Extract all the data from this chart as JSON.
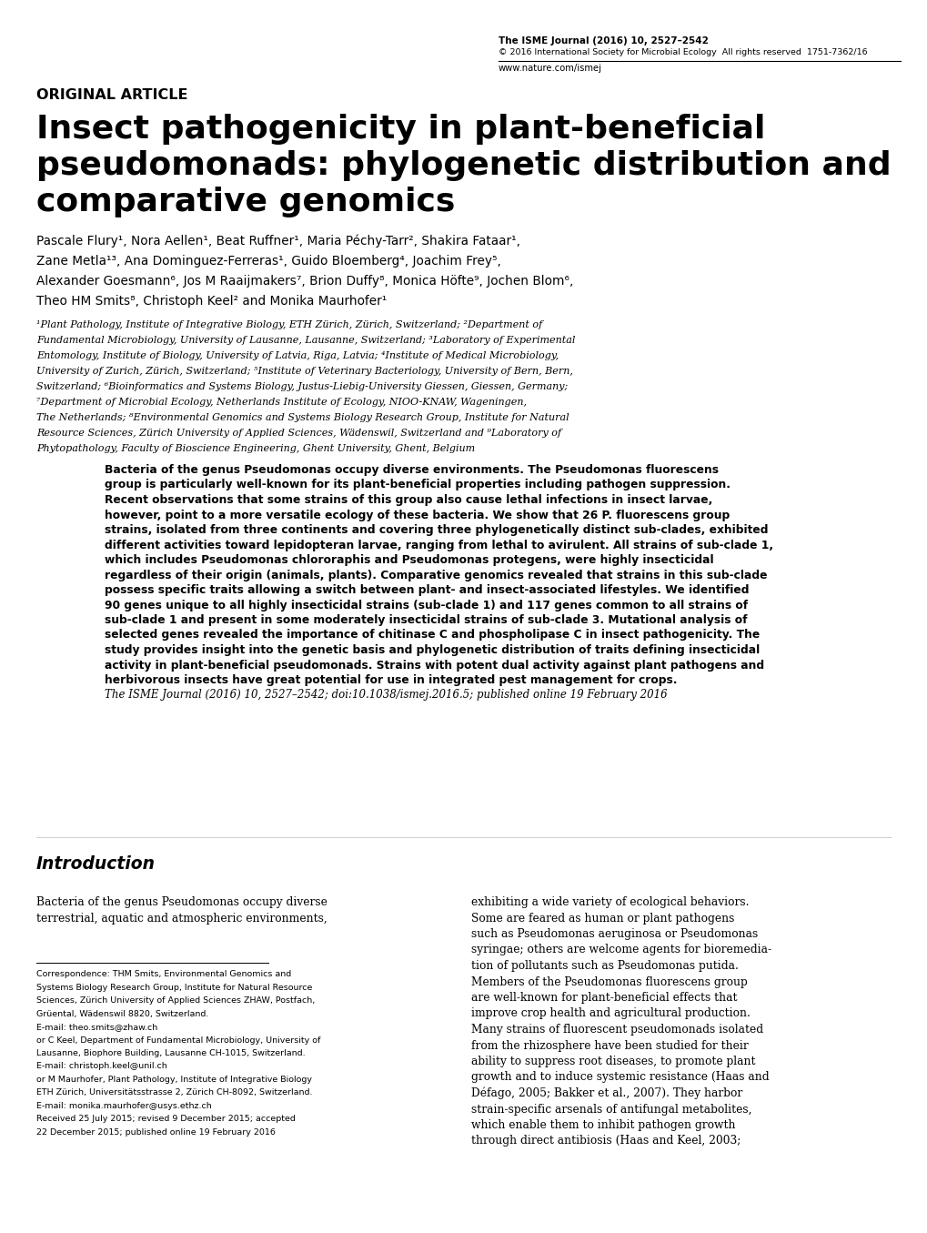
{
  "bg_color": "#ffffff",
  "journal_line1_bold": "The ISME Journal (2016) 10,",
  "journal_line1_normal": " 2527–2542",
  "journal_line2": "© 2016 International Society for Microbial Ecology  All rights reserved  1751-7362/16",
  "journal_line3": "www.nature.com/ismej",
  "original_article": "ORIGINAL ARTICLE",
  "title_line1": "Insect pathogenicity in plant-beneficial",
  "title_line2": "pseudomonads: phylogenetic distribution and",
  "title_line3": "comparative genomics",
  "authors_line1": "Pascale Flury¹, Nora Aellen¹, Beat Ruffner¹, Maria Péchy-Tarr², Shakira Fataar¹,",
  "authors_line2": "Zane Metla¹³, Ana Dominguez-Ferreras¹, Guido Bloemberg⁴, Joachim Frey⁵,",
  "authors_line3": "Alexander Goesmann⁶, Jos M Raaijmakers⁷, Brion Duffy⁸, Monica Höfte⁹, Jochen Blom⁶,",
  "authors_line4": "Theo HM Smits⁸, Christoph Keel² and Monika Maurhofer¹",
  "aff_line1": "¹Plant Pathology, Institute of Integrative Biology, ETH Zürich, Zürich, Switzerland; ²Department of",
  "aff_line2": "Fundamental Microbiology, University of Lausanne, Lausanne, Switzerland; ³Laboratory of Experimental",
  "aff_line3": "Entomology, Institute of Biology, University of Latvia, Riga, Latvia; ⁴Institute of Medical Microbiology,",
  "aff_line4": "University of Zurich, Zürich, Switzerland; ⁵Institute of Veterinary Bacteriology, University of Bern, Bern,",
  "aff_line5": "Switzerland; ⁶Bioinformatics and Systems Biology, Justus-Liebig-University Giessen, Giessen, Germany;",
  "aff_line6": "⁷Department of Microbial Ecology, Netherlands Institute of Ecology, NIOO-KNAW, Wageningen,",
  "aff_line7": "The Netherlands; ⁸Environmental Genomics and Systems Biology Research Group, Institute for Natural",
  "aff_line8": "Resource Sciences, Zürich University of Applied Sciences, Wädenswil, Switzerland and ⁹Laboratory of",
  "aff_line9": "Phytopathology, Faculty of Bioscience Engineering, Ghent University, Ghent, Belgium",
  "abs_lines": [
    "Bacteria of the genus Pseudomonas occupy diverse environments. The Pseudomonas fluorescens",
    "group is particularly well-known for its plant-beneficial properties including pathogen suppression.",
    "Recent observations that some strains of this group also cause lethal infections in insect larvae,",
    "however, point to a more versatile ecology of these bacteria. We show that 26 P. fluorescens group",
    "strains, isolated from three continents and covering three phylogenetically distinct sub-clades, exhibited",
    "different activities toward lepidopteran larvae, ranging from lethal to avirulent. All strains of sub-clade 1,",
    "which includes Pseudomonas chlororaphis and Pseudomonas protegens, were highly insecticidal",
    "regardless of their origin (animals, plants). Comparative genomics revealed that strains in this sub-clade",
    "possess specific traits allowing a switch between plant- and insect-associated lifestyles. We identified",
    "90 genes unique to all highly insecticidal strains (sub-clade 1) and 117 genes common to all strains of",
    "sub-clade 1 and present in some moderately insecticidal strains of sub-clade 3. Mutational analysis of",
    "selected genes revealed the importance of chitinase C and phospholipase C in insect pathogenicity. The",
    "study provides insight into the genetic basis and phylogenetic distribution of traits defining insecticidal",
    "activity in plant-beneficial pseudomonads. Strains with potent dual activity against plant pathogens and",
    "herbivorous insects have great potential for use in integrated pest management for crops."
  ],
  "abs_citation": "The ISME Journal (2016) 10, 2527–2542; doi:10.1038/ismej.2016.5; published online 19 February 2016",
  "intro_header": "Introduction",
  "intro_left_lines": [
    "Bacteria of the genus Pseudomonas occupy diverse",
    "terrestrial, aquatic and atmospheric environments,"
  ],
  "intro_right_lines": [
    "exhibiting a wide variety of ecological behaviors.",
    "Some are feared as human or plant pathogens",
    "such as Pseudomonas aeruginosa or Pseudomonas",
    "syringae; others are welcome agents for bioremedia-",
    "tion of pollutants such as Pseudomonas putida.",
    "Members of the Pseudomonas fluorescens group",
    "are well-known for plant-beneficial effects that",
    "improve crop health and agricultural production.",
    "Many strains of fluorescent pseudomonads isolated",
    "from the rhizosphere have been studied for their",
    "ability to suppress root diseases, to promote plant",
    "growth and to induce systemic resistance (Haas and",
    "Défago, 2005; Bakker et al., 2007). They harbor",
    "strain-specific arsenals of antifungal metabolites,",
    "which enable them to inhibit pathogen growth",
    "through direct antibiosis (Haas and Keel, 2003;"
  ],
  "fn_lines": [
    "Correspondence: THM Smits, Environmental Genomics and",
    "Systems Biology Research Group, Institute for Natural Resource",
    "Sciences, Zürich University of Applied Sciences ZHAW, Postfach,",
    "Grüental, Wädenswil 8820, Switzerland.",
    "E-mail: theo.smits@zhaw.ch",
    "or C Keel, Department of Fundamental Microbiology, University of",
    "Lausanne, Biophore Building, Lausanne CH-1015, Switzerland.",
    "E-mail: christoph.keel@unil.ch",
    "or M Maurhofer, Plant Pathology, Institute of Integrative Biology",
    "ETH Zürich, Universitätsstrasse 2, Zürich CH-8092, Switzerland.",
    "E-mail: monika.maurhofer@usys.ethz.ch",
    "Received 25 July 2015; revised 9 December 2015; accepted",
    "22 December 2015; published online 19 February 2016"
  ]
}
